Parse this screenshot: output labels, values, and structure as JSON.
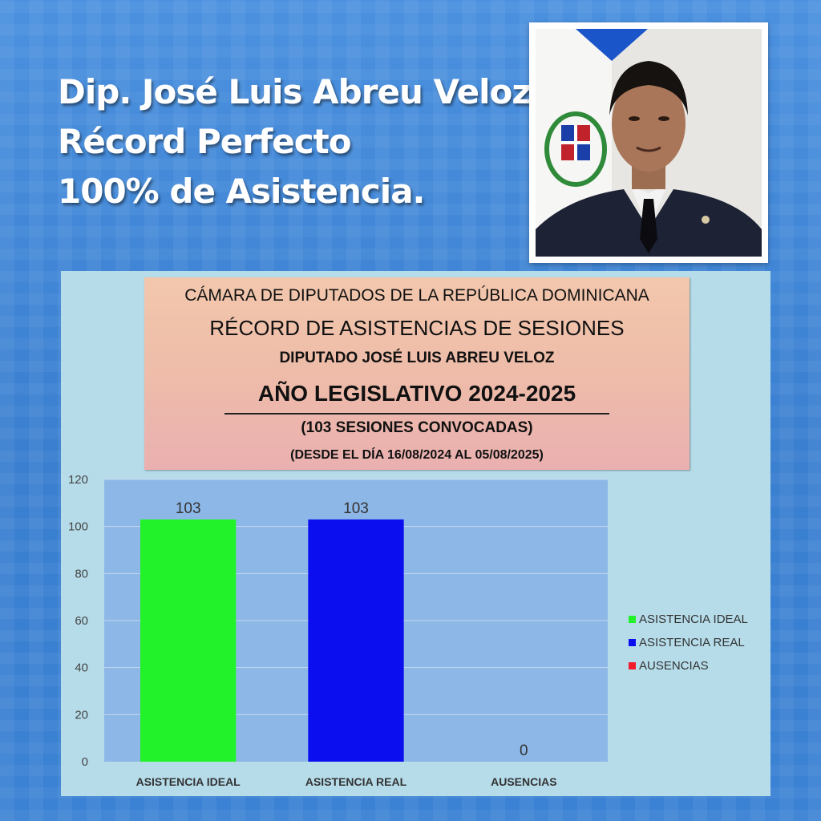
{
  "headline": {
    "lines": [
      "Dip. José Luis Abreu Veloz",
      "Récord Perfecto",
      "100% de Asistencia."
    ]
  },
  "chart_data": {
    "type": "bar",
    "header": {
      "line1": "CÁMARA DE DIPUTADOS DE LA REPÚBLICA DOMINICANA",
      "line2": "RÉCORD DE ASISTENCIAS DE SESIONES",
      "line3": "DIPUTADO JOSÉ LUIS ABREU VELOZ",
      "line4": "AÑO LEGISLATIVO 2024-2025",
      "line5": "(103 SESIONES CONVOCADAS)",
      "line6": "(DESDE EL DÍA 16/08/2024 AL 05/08/2025)"
    },
    "categories": [
      "ASISTENCIA IDEAL",
      "ASISTENCIA REAL",
      "AUSENCIAS"
    ],
    "values": [
      103,
      103,
      0
    ],
    "data_labels": [
      "103",
      "103",
      "0"
    ],
    "colors": [
      "#22f229",
      "#0b0ff0",
      "#f01b2b"
    ],
    "ylim": [
      0,
      120
    ],
    "yticks": [
      0,
      20,
      40,
      60,
      80,
      100,
      120
    ],
    "grid": true,
    "legend": {
      "position": "right",
      "entries": [
        "ASISTENCIA IDEAL",
        "ASISTENCIA REAL",
        "AUSENCIAS"
      ]
    },
    "plot_background": "#8db7e6"
  }
}
